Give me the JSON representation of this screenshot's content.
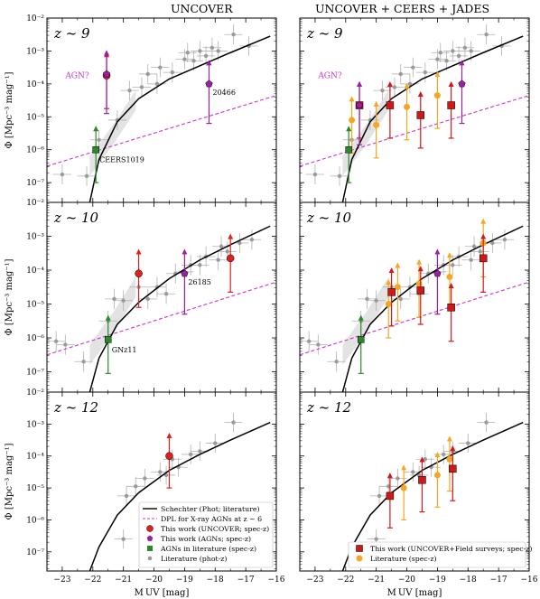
{
  "figure": {
    "col_titles": [
      "UNCOVER",
      "UNCOVER + CEERS + JADES"
    ],
    "xlabel": "M UV [mag]",
    "ylabel": "Φ [Mpc⁻³ mag⁻¹]",
    "xticks": [
      "−23",
      "−22",
      "−21",
      "−20",
      "−19",
      "−18",
      "−17",
      "−16"
    ],
    "yticks": [
      "10⁻⁷",
      "10⁻⁶",
      "10⁻⁵",
      "10⁻⁴",
      "10⁻³",
      "10⁻²"
    ],
    "colors": {
      "schechter": "#000000",
      "dpl": "#cc33cc",
      "uncover": "#e0201b",
      "agn": "#9b1fa3",
      "agn_lit": "#2a8a2a",
      "field": "#d01818",
      "spec_lit": "#f5a623",
      "phot_lit": "#b0b0b0",
      "band": "#e3e3e3"
    }
  },
  "chart_data": [
    {
      "type": "scatter",
      "panel": "top-left",
      "redshift_label": "z ~ 9",
      "xlim": [
        -23.5,
        -16
      ],
      "ylim_log10": [
        -7.6,
        -2
      ],
      "y_scale": "log",
      "schechter": [
        [
          -22.1,
          -7.6
        ],
        [
          -21.8,
          -6.3
        ],
        [
          -21.2,
          -5.15
        ],
        [
          -20.5,
          -4.45
        ],
        [
          -19.5,
          -3.85
        ],
        [
          -18.5,
          -3.45
        ],
        [
          -17.5,
          -3.05
        ],
        [
          -16.2,
          -2.55
        ]
      ],
      "dpl": [
        [
          -23.5,
          -6.5
        ],
        [
          -16,
          -4.35
        ]
      ],
      "phot_lit": [
        [
          -23,
          -6.75
        ],
        [
          -22.2,
          -6.8
        ],
        [
          -21.8,
          -5.7
        ],
        [
          -21.2,
          -5.1
        ],
        [
          -20.8,
          -4.2
        ],
        [
          -20.4,
          -4.1
        ],
        [
          -20.2,
          -3.7
        ],
        [
          -19.9,
          -4.0
        ],
        [
          -19.8,
          -3.5
        ],
        [
          -19.4,
          -3.65
        ],
        [
          -19.0,
          -3.25
        ],
        [
          -18.9,
          -3.05
        ],
        [
          -18.7,
          -3.3
        ],
        [
          -18.5,
          -3.0
        ],
        [
          -18.3,
          -3.15
        ],
        [
          -18.1,
          -2.9
        ],
        [
          -17.9,
          -3.0
        ],
        [
          -17.4,
          -2.5
        ],
        [
          -16.9,
          -2.85
        ]
      ],
      "uncover_specz": [
        {
          "x": -21.55,
          "y": -3.75,
          "lower_limit": true
        }
      ],
      "agn_specz": [
        {
          "x": -21.55,
          "y": -3.7
        },
        {
          "x": -18.2,
          "y": -4.0,
          "label": "20466"
        }
      ],
      "agn_lit": [
        {
          "x": -21.9,
          "y": -6.0,
          "label": "CEERS1019"
        }
      ],
      "annotations": [
        "AGN?"
      ]
    },
    {
      "type": "scatter",
      "panel": "top-right",
      "redshift_label": "z ~ 9",
      "xlim": [
        -23.5,
        -16
      ],
      "ylim_log10": [
        -7.6,
        -2
      ],
      "y_scale": "log",
      "schechter": [
        [
          -22.1,
          -7.6
        ],
        [
          -21.8,
          -6.3
        ],
        [
          -21.2,
          -5.15
        ],
        [
          -20.5,
          -4.45
        ],
        [
          -19.5,
          -3.85
        ],
        [
          -18.5,
          -3.45
        ],
        [
          -17.5,
          -3.05
        ],
        [
          -16.2,
          -2.55
        ]
      ],
      "dpl": [
        [
          -23.5,
          -6.5
        ],
        [
          -16,
          -4.35
        ]
      ],
      "phot_lit": [
        [
          -23,
          -6.75
        ],
        [
          -22.2,
          -6.8
        ],
        [
          -21.8,
          -5.7
        ],
        [
          -21.2,
          -5.1
        ],
        [
          -20.8,
          -4.2
        ],
        [
          -20.4,
          -4.1
        ],
        [
          -20.2,
          -3.7
        ],
        [
          -19.9,
          -4.0
        ],
        [
          -19.8,
          -3.5
        ],
        [
          -19.4,
          -3.65
        ],
        [
          -19.0,
          -3.25
        ],
        [
          -18.9,
          -3.05
        ],
        [
          -18.7,
          -3.3
        ],
        [
          -18.5,
          -3.0
        ],
        [
          -18.3,
          -3.15
        ],
        [
          -18.1,
          -2.9
        ],
        [
          -17.9,
          -3.0
        ],
        [
          -17.4,
          -2.5
        ],
        [
          -16.9,
          -2.85
        ]
      ],
      "field_specz": [
        {
          "x": -21.55,
          "y": -4.65
        },
        {
          "x": -20.55,
          "y": -4.65
        },
        {
          "x": -19.55,
          "y": -4.95
        },
        {
          "x": -18.55,
          "y": -4.65
        }
      ],
      "spec_lit": [
        {
          "x": -21.8,
          "y": -5.1
        },
        {
          "x": -21.0,
          "y": -5.25
        },
        {
          "x": -20.0,
          "y": -4.7
        },
        {
          "x": -19.0,
          "y": -4.35
        }
      ],
      "agn_specz": [
        {
          "x": -21.55,
          "y": -4.65
        },
        {
          "x": -18.2,
          "y": -4.0
        }
      ],
      "agn_lit": [
        {
          "x": -21.9,
          "y": -6.0
        }
      ],
      "annotations": [
        "AGN?"
      ]
    },
    {
      "type": "scatter",
      "panel": "mid-left",
      "redshift_label": "z ~ 10",
      "xlim": [
        -23.5,
        -16
      ],
      "ylim_log10": [
        -7.6,
        -2
      ],
      "y_scale": "log",
      "schechter": [
        [
          -22.1,
          -7.6
        ],
        [
          -21.8,
          -6.6
        ],
        [
          -21.2,
          -5.6
        ],
        [
          -20.5,
          -4.95
        ],
        [
          -19.5,
          -4.25
        ],
        [
          -18.5,
          -3.7
        ],
        [
          -17.5,
          -3.25
        ],
        [
          -16.2,
          -2.7
        ]
      ],
      "dpl": [
        [
          -23.5,
          -6.5
        ],
        [
          -16,
          -4.35
        ]
      ],
      "phot_lit": [
        [
          -23.2,
          -6.1
        ],
        [
          -22.9,
          -6.2
        ],
        [
          -22.3,
          -6.7
        ],
        [
          -21.5,
          -5.5
        ],
        [
          -21.3,
          -4.85
        ],
        [
          -21.0,
          -4.9
        ],
        [
          -20.5,
          -4.5
        ],
        [
          -20.2,
          -4.85
        ],
        [
          -19.9,
          -4.5
        ],
        [
          -19.6,
          -4.7
        ],
        [
          -19.3,
          -4.1
        ],
        [
          -19.0,
          -4.05
        ],
        [
          -18.8,
          -3.85
        ],
        [
          -18.5,
          -3.85
        ],
        [
          -18.3,
          -3.6
        ],
        [
          -17.9,
          -3.7
        ],
        [
          -17.8,
          -3.3
        ],
        [
          -17.6,
          -3.45
        ],
        [
          -17.2,
          -3.2
        ],
        [
          -16.8,
          -3.1
        ]
      ],
      "uncover_specz": [
        {
          "x": -20.5,
          "y": -4.1,
          "lower_limit": true
        },
        {
          "x": -17.5,
          "y": -3.65,
          "lower_limit": true
        }
      ],
      "agn_specz": [
        {
          "x": -19.0,
          "y": -4.1,
          "label": "26185"
        }
      ],
      "agn_lit": [
        {
          "x": -21.5,
          "y": -6.05,
          "label": "GNz11"
        }
      ]
    },
    {
      "type": "scatter",
      "panel": "mid-right",
      "redshift_label": "z ~ 10",
      "xlim": [
        -23.5,
        -16
      ],
      "ylim_log10": [
        -7.6,
        -2
      ],
      "y_scale": "log",
      "schechter": [
        [
          -22.1,
          -7.6
        ],
        [
          -21.8,
          -6.6
        ],
        [
          -21.2,
          -5.6
        ],
        [
          -20.5,
          -4.95
        ],
        [
          -19.5,
          -4.25
        ],
        [
          -18.5,
          -3.7
        ],
        [
          -17.5,
          -3.25
        ],
        [
          -16.2,
          -2.7
        ]
      ],
      "dpl": [
        [
          -23.5,
          -6.5
        ],
        [
          -16,
          -4.35
        ]
      ],
      "phot_lit": [
        [
          -23.2,
          -6.1
        ],
        [
          -22.9,
          -6.2
        ],
        [
          -22.3,
          -6.7
        ],
        [
          -21.5,
          -5.5
        ],
        [
          -21.3,
          -4.85
        ],
        [
          -21.0,
          -4.9
        ],
        [
          -20.5,
          -4.5
        ],
        [
          -20.2,
          -4.85
        ],
        [
          -19.9,
          -4.5
        ],
        [
          -19.6,
          -4.7
        ],
        [
          -19.3,
          -4.1
        ],
        [
          -19.0,
          -4.05
        ],
        [
          -18.8,
          -3.85
        ],
        [
          -18.5,
          -3.85
        ],
        [
          -18.3,
          -3.6
        ],
        [
          -17.9,
          -3.7
        ],
        [
          -17.8,
          -3.3
        ],
        [
          -17.6,
          -3.45
        ],
        [
          -17.2,
          -3.2
        ],
        [
          -16.8,
          -3.1
        ]
      ],
      "field_specz": [
        {
          "x": -20.5,
          "y": -4.65
        },
        {
          "x": -19.55,
          "y": -4.6
        },
        {
          "x": -18.55,
          "y": -5.1
        },
        {
          "x": -17.5,
          "y": -3.65
        }
      ],
      "spec_lit": [
        {
          "x": -20.6,
          "y": -5.0
        },
        {
          "x": -20.3,
          "y": -4.5
        },
        {
          "x": -19.6,
          "y": -4.4
        },
        {
          "x": -18.6,
          "y": -4.2
        },
        {
          "x": -17.5,
          "y": -3.2
        }
      ],
      "agn_specz": [
        {
          "x": -19.0,
          "y": -4.1
        }
      ],
      "agn_lit": [
        {
          "x": -21.5,
          "y": -6.05
        }
      ]
    },
    {
      "type": "scatter",
      "panel": "bottom-left",
      "redshift_label": "z ~ 12",
      "xlim": [
        -23.5,
        -16
      ],
      "ylim_log10": [
        -7.6,
        -2
      ],
      "y_scale": "log",
      "schechter": [
        [
          -22.1,
          -7.6
        ],
        [
          -21.8,
          -6.85
        ],
        [
          -21.2,
          -5.85
        ],
        [
          -20.5,
          -5.15
        ],
        [
          -19.5,
          -4.45
        ],
        [
          -18.5,
          -3.95
        ],
        [
          -17.5,
          -3.5
        ],
        [
          -16.2,
          -2.95
        ]
      ],
      "phot_lit": [
        [
          -21.0,
          -6.6
        ],
        [
          -20.9,
          -5.25
        ],
        [
          -20.6,
          -4.95
        ],
        [
          -20.3,
          -4.7
        ],
        [
          -19.8,
          -4.5
        ],
        [
          -19.6,
          -4.6
        ],
        [
          -19.2,
          -4.35
        ],
        [
          -18.8,
          -3.95
        ],
        [
          -18.5,
          -3.85
        ],
        [
          -18.0,
          -3.6
        ],
        [
          -17.4,
          -2.95
        ],
        [
          -19.4,
          -4.1
        ]
      ],
      "uncover_specz": [
        {
          "x": -19.5,
          "y": -4.0,
          "lower_limit": true
        }
      ],
      "legend": {
        "placement": "bottom-right",
        "entries": [
          "Schechter (Phot; literature)",
          "DPL for X-ray AGNs at z ~ 6",
          "This work (UNCOVER; spec-z)",
          "This work (AGNs; spec-z)",
          "AGNs in literature (spec-z)",
          "Literature (phot-z)"
        ]
      }
    },
    {
      "type": "scatter",
      "panel": "bottom-right",
      "redshift_label": "z ~ 12",
      "xlim": [
        -23.5,
        -16
      ],
      "ylim_log10": [
        -7.6,
        -2
      ],
      "y_scale": "log",
      "schechter": [
        [
          -22.1,
          -7.6
        ],
        [
          -21.8,
          -6.85
        ],
        [
          -21.2,
          -5.85
        ],
        [
          -20.5,
          -5.15
        ],
        [
          -19.5,
          -4.45
        ],
        [
          -18.5,
          -3.95
        ],
        [
          -17.5,
          -3.5
        ],
        [
          -16.2,
          -2.95
        ]
      ],
      "phot_lit": [
        [
          -21.0,
          -6.6
        ],
        [
          -20.9,
          -5.25
        ],
        [
          -20.6,
          -4.95
        ],
        [
          -20.3,
          -4.7
        ],
        [
          -19.8,
          -4.5
        ],
        [
          -19.6,
          -4.6
        ],
        [
          -19.2,
          -4.35
        ],
        [
          -18.8,
          -3.95
        ],
        [
          -18.5,
          -3.85
        ],
        [
          -18.0,
          -3.6
        ],
        [
          -17.4,
          -2.95
        ],
        [
          -19.4,
          -4.1
        ]
      ],
      "field_specz": [
        {
          "x": -20.55,
          "y": -5.25
        },
        {
          "x": -19.5,
          "y": -4.75
        },
        {
          "x": -18.5,
          "y": -4.4
        }
      ],
      "spec_lit": [
        {
          "x": -20.1,
          "y": -5.0
        },
        {
          "x": -19.0,
          "y": -4.6
        },
        {
          "x": -18.6,
          "y": -4.1
        }
      ],
      "legend": {
        "placement": "bottom-right",
        "entries": [
          "This work (UNCOVER+Field surveys; spec-z)",
          "Literature (spec-z)"
        ]
      }
    }
  ]
}
